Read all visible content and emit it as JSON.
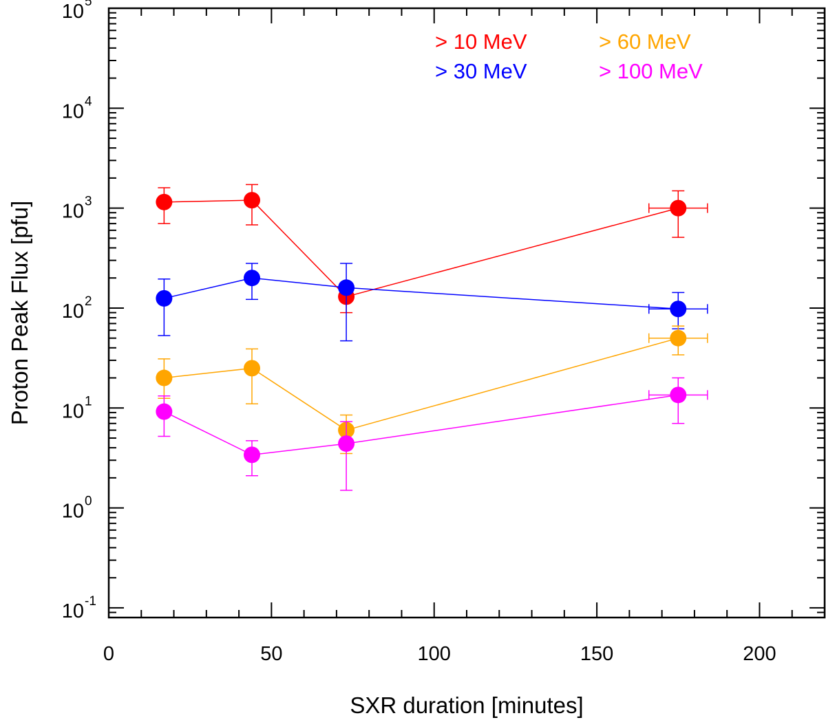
{
  "chart_data": {
    "type": "scatter",
    "title": "",
    "xlabel": "SXR duration [minutes]",
    "ylabel": "Proton Peak Flux [pfu]",
    "xlim": [
      0,
      220
    ],
    "ylim": [
      0.08,
      100000
    ],
    "yscale": "log",
    "grid": false,
    "legend_position": "top-right",
    "x_ticks": [
      {
        "value": 0,
        "label": "0"
      },
      {
        "value": 50,
        "label": "50"
      },
      {
        "value": 100,
        "label": "100"
      },
      {
        "value": 150,
        "label": "150"
      },
      {
        "value": 200,
        "label": "200"
      }
    ],
    "y_ticks": [
      {
        "value": 0.1,
        "base": "10",
        "exp": "-1"
      },
      {
        "value": 1,
        "base": "10",
        "exp": "0"
      },
      {
        "value": 10,
        "base": "10",
        "exp": "1"
      },
      {
        "value": 100,
        "base": "10",
        "exp": "2"
      },
      {
        "value": 1000,
        "base": "10",
        "exp": "3"
      },
      {
        "value": 10000,
        "base": "10",
        "exp": "4"
      },
      {
        "value": 100000,
        "base": "10",
        "exp": "5"
      }
    ],
    "series": [
      {
        "name": "> 10 MeV",
        "color": "#ff0000",
        "points": [
          {
            "x": 17,
            "y": 1150,
            "ylo": 700,
            "yhi": 1600
          },
          {
            "x": 44,
            "y": 1200,
            "ylo": 680,
            "yhi": 1720
          },
          {
            "x": 73,
            "y": 130,
            "ylo": 90,
            "yhi": 170
          },
          {
            "x": 175,
            "y": 1000,
            "ylo": 510,
            "yhi": 1490,
            "xlo": 166,
            "xhi": 184
          }
        ]
      },
      {
        "name": "> 30 MeV",
        "color": "#0000ff",
        "points": [
          {
            "x": 17,
            "y": 125,
            "ylo": 53,
            "yhi": 195
          },
          {
            "x": 44,
            "y": 200,
            "ylo": 122,
            "yhi": 280
          },
          {
            "x": 73,
            "y": 160,
            "ylo": 47,
            "yhi": 280
          },
          {
            "x": 175,
            "y": 98,
            "ylo": 62,
            "yhi": 143,
            "xlo": 166,
            "xhi": 184
          }
        ]
      },
      {
        "name": "> 60 MeV",
        "color": "#ffa500",
        "points": [
          {
            "x": 17,
            "y": 20,
            "ylo": 12.5,
            "yhi": 31
          },
          {
            "x": 44,
            "y": 25,
            "ylo": 11,
            "yhi": 39
          },
          {
            "x": 73,
            "y": 6,
            "ylo": 3.5,
            "yhi": 8.5
          },
          {
            "x": 175,
            "y": 50,
            "ylo": 34,
            "yhi": 66,
            "xlo": 166,
            "xhi": 184
          }
        ]
      },
      {
        "name": "> 100 MeV",
        "color": "#ff00ff",
        "points": [
          {
            "x": 17,
            "y": 9.2,
            "ylo": 5.2,
            "yhi": 13.2
          },
          {
            "x": 44,
            "y": 3.4,
            "ylo": 2.1,
            "yhi": 4.7
          },
          {
            "x": 73,
            "y": 4.4,
            "ylo": 1.5,
            "yhi": 7.3
          },
          {
            "x": 175,
            "y": 13.5,
            "ylo": 7,
            "yhi": 20,
            "xlo": 166,
            "xhi": 184
          }
        ]
      }
    ]
  }
}
